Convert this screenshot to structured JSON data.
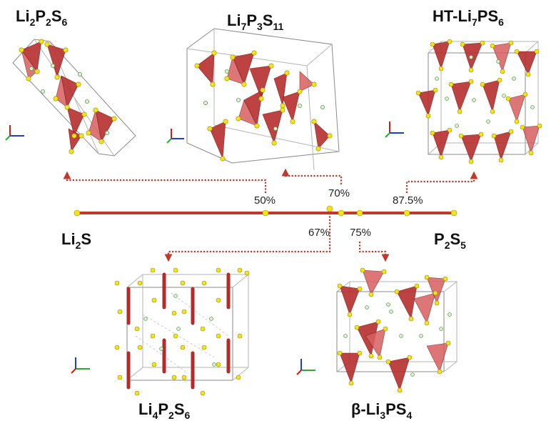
{
  "structures": {
    "li2p2s6": {
      "name": "Li",
      "s1": "2",
      "m1": "P",
      "s2": "2",
      "m2": "S",
      "s3": "6"
    },
    "li7p3s11": {
      "name": "Li",
      "s1": "7",
      "m1": "P",
      "s2": "3",
      "m2": "S",
      "s3": "11"
    },
    "ht_li7ps6": {
      "prefix": "HT-Li",
      "s1": "7",
      "m1": "PS",
      "s2": "6"
    },
    "li4p2s6": {
      "name": "Li",
      "s1": "4",
      "m1": "P",
      "s2": "2",
      "m2": "S",
      "s3": "6"
    },
    "beta_li3ps4": {
      "prefix": "β-Li",
      "s1": "3",
      "m1": "PS",
      "s2": "4"
    }
  },
  "composition_axis": {
    "left_end": {
      "name": "Li",
      "sub": "2",
      "tail": "S"
    },
    "right_end": {
      "name": "P",
      "sub1": "2",
      "mid": "S",
      "sub2": "5"
    },
    "markers_above": [
      "50%",
      "70%",
      "87.5%"
    ],
    "markers_below": [
      "67%",
      "75%"
    ],
    "line_color": "#c0392b",
    "marker_color": "#f2e51b"
  },
  "colors": {
    "tetrahedron": "#b83232",
    "sulfur": "#f2e51b",
    "lithium": "#dff2d6",
    "arrow": "#c0392b"
  }
}
